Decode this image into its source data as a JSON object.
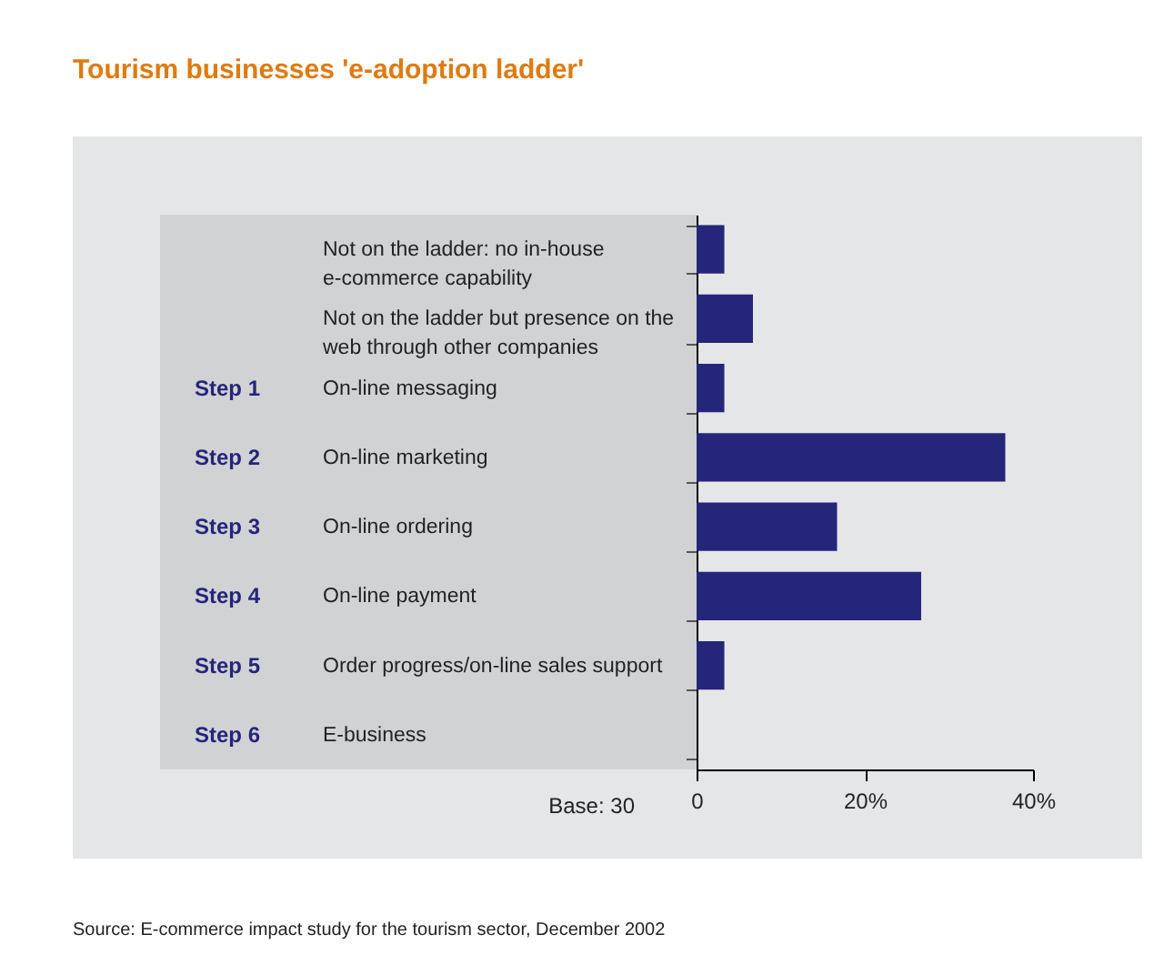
{
  "chart_data": {
    "type": "bar",
    "orientation": "horizontal",
    "title": "Tourism businesses 'e-adoption ladder'",
    "categories": [
      "Not on the ladder: no in-house e-commerce capability",
      "Not on the ladder but presence on the web through other companies",
      "On-line messaging",
      "On-line marketing",
      "On-line ordering",
      "On-line payment",
      "Order progress/on-line sales support",
      "E-business"
    ],
    "values": [
      3.3,
      6.7,
      3.3,
      36.7,
      16.7,
      26.7,
      3.3,
      0
    ],
    "color": "#25257a",
    "xlim": [
      0,
      40
    ],
    "xticks": [
      0,
      {
        "value": 20,
        "label": "20%"
      },
      {
        "value": 40,
        "label": "40%"
      }
    ],
    "annotations": [
      "Step 1",
      "Step 2",
      "Step 3",
      "Step 4",
      "Step 5",
      "Step 6",
      "Base: 30",
      "Source: E-commerce impact study for the tourism sector, December 2002"
    ]
  }
}
